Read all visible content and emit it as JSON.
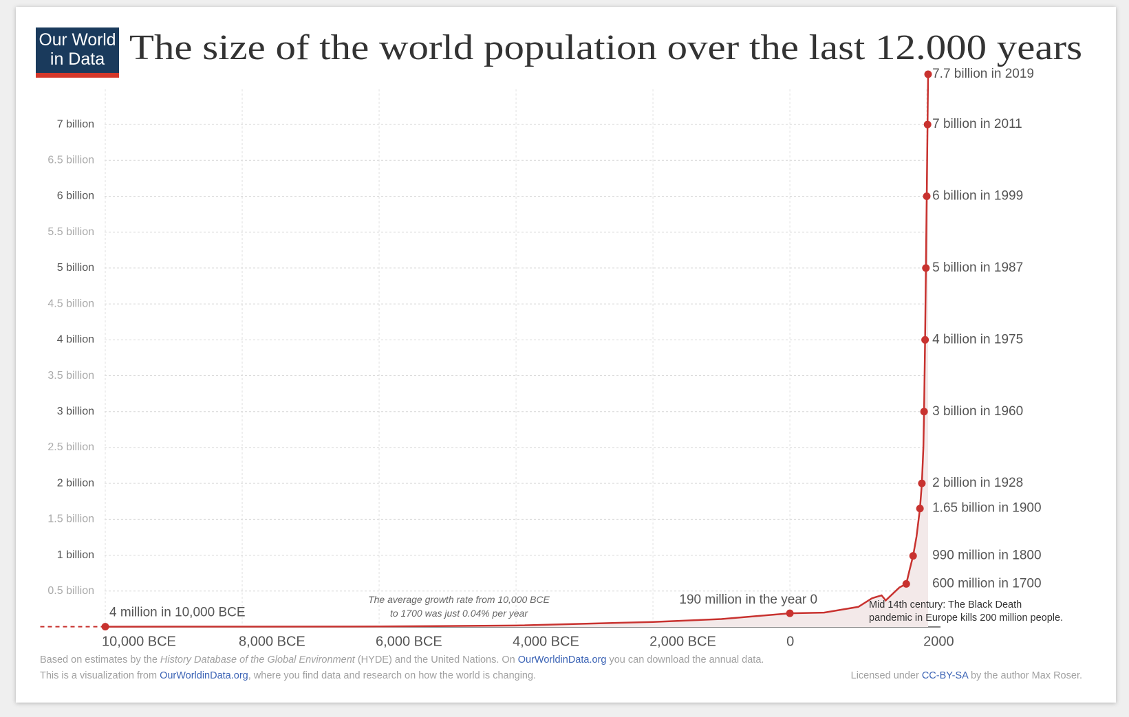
{
  "logo": [
    "Our World",
    "in Data"
  ],
  "chart_data": {
    "type": "line",
    "title": "The size of the world population over the last 12.000 years",
    "color": "#c8322f",
    "area_color": "#f3e9e9",
    "grid": true,
    "x": [
      -10000,
      -8000,
      -6000,
      -4000,
      -2000,
      -1000,
      0,
      500,
      1000,
      1200,
      1340,
      1400,
      1500,
      1600,
      1700,
      1750,
      1800,
      1850,
      1900,
      1928,
      1950,
      1960,
      1975,
      1987,
      1999,
      2011,
      2019
    ],
    "values": [
      0.004,
      0.005,
      0.007,
      0.02,
      0.07,
      0.11,
      0.19,
      0.2,
      0.28,
      0.4,
      0.44,
      0.37,
      0.46,
      0.55,
      0.6,
      0.8,
      0.99,
      1.26,
      1.65,
      2,
      2.5,
      3,
      4,
      5,
      6,
      7,
      7.7
    ],
    "xlim": [
      -10950,
      2200
    ],
    "ylim": [
      0,
      7.7
    ],
    "xticks": [
      {
        "value": -10000,
        "label": "10,000 BCE"
      },
      {
        "value": -8000,
        "label": "8,000 BCE"
      },
      {
        "value": -6000,
        "label": "6,000 BCE"
      },
      {
        "value": -4000,
        "label": "4,000 BCE"
      },
      {
        "value": -2000,
        "label": "2,000 BCE"
      },
      0,
      2000
    ],
    "yticks": [
      {
        "value": 0.5,
        "label": "0.5 billion"
      },
      {
        "value": 1,
        "label": "1 billion"
      },
      {
        "value": 1.5,
        "label": "1.5 billion"
      },
      {
        "value": 2,
        "label": "2 billion"
      },
      {
        "value": 2.5,
        "label": "2.5 billion"
      },
      {
        "value": 3,
        "label": "3 billion"
      },
      {
        "value": 3.5,
        "label": "3.5 billion"
      },
      {
        "value": 4,
        "label": "4 billion"
      },
      {
        "value": 4.5,
        "label": "4.5 billion"
      },
      {
        "value": 5,
        "label": "5 billion"
      },
      {
        "value": 5.5,
        "label": "5.5 billion"
      },
      {
        "value": 6,
        "label": "6 billion"
      },
      {
        "value": 6.5,
        "label": "6.5 billion"
      },
      {
        "value": 7,
        "label": "7 billion"
      }
    ],
    "annotations": [
      {
        "x": -10000,
        "y": 0.004,
        "label": "4 million in 10,000 BCE"
      },
      {
        "x": 0,
        "y": 0.19,
        "label": "190 million in the year 0"
      },
      {
        "x": 1700,
        "y": 0.6,
        "label": "600 million in 1700"
      },
      {
        "x": 1800,
        "y": 0.99,
        "label": "990 million in 1800"
      },
      {
        "x": 1900,
        "y": 1.65,
        "label": "1.65 billion in 1900"
      },
      {
        "x": 1928,
        "y": 2,
        "label": "2 billion in 1928"
      },
      {
        "x": 1960,
        "y": 3,
        "label": "3 billion in 1960"
      },
      {
        "x": 1975,
        "y": 4,
        "label": "4 billion in 1975"
      },
      {
        "x": 1987,
        "y": 5,
        "label": "5 billion in 1987"
      },
      {
        "x": 1999,
        "y": 6,
        "label": "6 billion in 1999"
      },
      {
        "x": 2011,
        "y": 7,
        "label": "7 billion in 2011"
      },
      {
        "x": 2019,
        "y": 7.7,
        "label": "7.7 billion in 2019"
      }
    ],
    "growth_note": [
      "The average growth rate from 10,000 BCE",
      "to 1700 was just 0.04% per year"
    ],
    "black_death_note": [
      "Mid 14th century: The Black Death",
      "pandemic in Europe kills 200 million people."
    ]
  },
  "footer": {
    "source": [
      "Based on estimates by the ",
      "History Database of the Global Environment",
      " (HYDE) and the United Nations. On ",
      "OurWorldinData.org",
      " you can download the annual data."
    ],
    "visualization": [
      "This is a visualization from ",
      "OurWorldinData.org",
      ", where you find data and research on how the world is changing."
    ],
    "license": [
      "Licensed under ",
      "CC-BY-SA",
      " by the author Max Roser."
    ]
  }
}
